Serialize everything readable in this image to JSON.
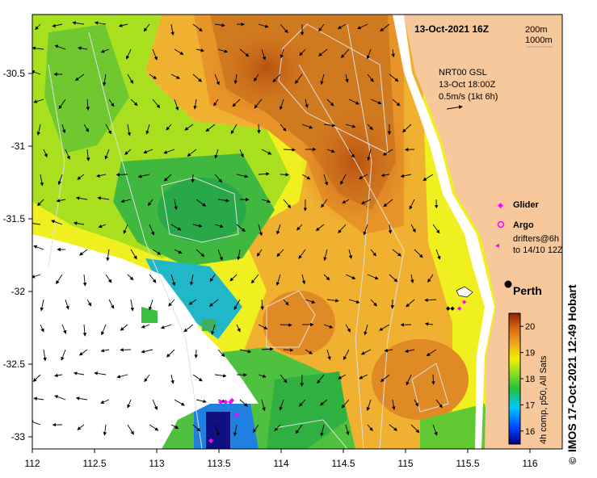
{
  "map": {
    "date_title": "13-Oct-2021 16Z",
    "contour_labels": [
      "200m",
      "1000m"
    ],
    "current_source": "NRT00 GSL",
    "current_time": "13-Oct 18:00Z",
    "current_scale": "0.5m/s (1kt 6h)",
    "legend": {
      "glider": "Glider",
      "argo": "Argo",
      "drifters_line1": "drifters@6h",
      "drifters_line2": "to 14/10 12Z"
    },
    "city": "Perth",
    "lon_ticks": [
      "112",
      "112.5",
      "113",
      "113.5",
      "114",
      "114.5",
      "115",
      "115.5",
      "116"
    ],
    "lat_ticks": [
      "-30.5",
      "-31",
      "-31.5",
      "-32",
      "-32.5",
      "-33"
    ],
    "colorbar": {
      "ticks": [
        "20",
        "19",
        "18",
        "17",
        "16"
      ],
      "label": "4h comp, p50, All Sats",
      "range": [
        15.5,
        20.5
      ]
    },
    "credit": "IMOS 17-Oct-2021 12:49 Hobart",
    "copyright_symbol": "©",
    "colors": {
      "land": "#f7c89b",
      "glider": "#ff00ff",
      "argo": "#ff00ff",
      "drifter": "#ff00ff",
      "contour": "#dddddd"
    }
  }
}
